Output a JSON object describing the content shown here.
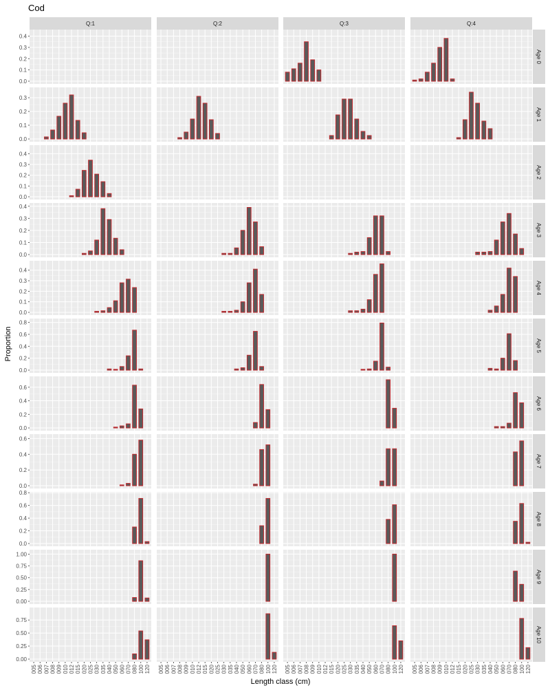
{
  "chart_data": {
    "type": "bar",
    "title": "Cod",
    "xlabel": "Length class (cm)",
    "ylabel": "Proportion",
    "categories": [
      "005",
      "006",
      "007",
      "008",
      "009",
      "010",
      "012",
      "015",
      "020",
      "025",
      "030",
      "035",
      "040",
      "050",
      "060",
      "070",
      "080",
      "100",
      "120"
    ],
    "quarters": [
      "Q:1",
      "Q:2",
      "Q:3",
      "Q:4"
    ],
    "ages": [
      "Age 0",
      "Age 1",
      "Age 2",
      "Age 3",
      "Age 4",
      "Age 5",
      "Age 6",
      "Age 7",
      "Age 8",
      "Age 9",
      "Age 10"
    ],
    "y_ticks": [
      [
        "0.0",
        "0.1",
        "0.2",
        "0.3",
        "0.4"
      ],
      [
        "0.0",
        "0.1",
        "0.2",
        "0.3"
      ],
      [
        "0.0",
        "0.1",
        "0.2",
        "0.3",
        "0.4"
      ],
      [
        "0.0",
        "0.1",
        "0.2",
        "0.3",
        "0.4"
      ],
      [
        "0.0",
        "0.1",
        "0.2",
        "0.3",
        "0.4"
      ],
      [
        "0.0",
        "0.2",
        "0.4",
        "0.6",
        "0.8"
      ],
      [
        "0.0",
        "0.2",
        "0.4",
        "0.6"
      ],
      [
        "0.0",
        "0.2",
        "0.4",
        "0.6"
      ],
      [
        "0.0",
        "0.2",
        "0.4",
        "0.6",
        "0.8"
      ],
      [
        "0.00",
        "0.25",
        "0.50",
        "0.75",
        "1.00"
      ],
      [
        "0.00",
        "0.25",
        "0.50",
        "0.75"
      ]
    ],
    "ylims": [
      [
        0,
        0.44
      ],
      [
        0,
        0.36
      ],
      [
        0,
        0.46
      ],
      [
        0,
        0.41
      ],
      [
        0,
        0.47
      ],
      [
        0,
        0.83
      ],
      [
        0,
        0.73
      ],
      [
        0,
        0.63
      ],
      [
        0,
        0.78
      ],
      [
        0,
        1.05
      ],
      [
        0,
        0.95
      ]
    ],
    "bar_color": "#5a5a5a",
    "bar_outline": "#c0282d",
    "panel_bg": "#ebebeb",
    "strip_bg": "#d9d9d9",
    "data": [
      [
        [
          0,
          0,
          0,
          0,
          0,
          0,
          0,
          0,
          0,
          0,
          0,
          0,
          0,
          0,
          0,
          0,
          0,
          0,
          0
        ],
        [
          0,
          0,
          0,
          0,
          0,
          0,
          0,
          0,
          0,
          0,
          0,
          0,
          0,
          0,
          0,
          0,
          0,
          0,
          0
        ],
        [
          0.08,
          0.11,
          0.16,
          0.35,
          0.19,
          0.1,
          0,
          0,
          0,
          0,
          0,
          0,
          0,
          0,
          0,
          0,
          0,
          0,
          0
        ],
        [
          0.01,
          0.02,
          0.08,
          0.16,
          0.3,
          0.38,
          0.02,
          0,
          0,
          0,
          0,
          0,
          0,
          0,
          0,
          0,
          0,
          0,
          0
        ]
      ],
      [
        [
          0,
          0,
          0.015,
          0.065,
          0.165,
          0.26,
          0.32,
          0.135,
          0.045,
          0,
          0,
          0,
          0,
          0,
          0,
          0,
          0,
          0,
          0
        ],
        [
          0,
          0,
          0,
          0.01,
          0.05,
          0.145,
          0.31,
          0.26,
          0.14,
          0.04,
          0,
          0,
          0,
          0,
          0,
          0,
          0,
          0,
          0
        ],
        [
          0,
          0,
          0,
          0,
          0,
          0,
          0,
          0.025,
          0.175,
          0.29,
          0.29,
          0.145,
          0.055,
          0.025,
          0,
          0,
          0,
          0,
          0
        ],
        [
          0,
          0,
          0,
          0,
          0,
          0,
          0,
          0.01,
          0.14,
          0.34,
          0.26,
          0.13,
          0.075,
          0,
          0,
          0,
          0,
          0,
          0
        ]
      ],
      [
        [
          0,
          0,
          0,
          0,
          0,
          0,
          0.01,
          0.07,
          0.245,
          0.34,
          0.21,
          0.14,
          0.03,
          0,
          0,
          0,
          0,
          0,
          0
        ],
        [
          0,
          0,
          0,
          0,
          0,
          0,
          0,
          0,
          0,
          0,
          0,
          0,
          0,
          0,
          0,
          0,
          0,
          0,
          0
        ],
        [
          0,
          0,
          0,
          0,
          0,
          0,
          0,
          0,
          0,
          0,
          0,
          0,
          0,
          0,
          0,
          0,
          0,
          0,
          0
        ],
        [
          0,
          0,
          0,
          0,
          0,
          0,
          0,
          0,
          0,
          0,
          0,
          0,
          0,
          0,
          0,
          0,
          0,
          0,
          0
        ]
      ],
      [
        [
          0,
          0,
          0,
          0,
          0,
          0,
          0,
          0,
          0.01,
          0.03,
          0.12,
          0.38,
          0.29,
          0.135,
          0.04,
          0,
          0,
          0,
          0
        ],
        [
          0,
          0,
          0,
          0,
          0,
          0,
          0,
          0,
          0,
          0,
          0.01,
          0.01,
          0.055,
          0.2,
          0.39,
          0.27,
          0.065,
          0,
          0
        ],
        [
          0,
          0,
          0,
          0,
          0,
          0,
          0,
          0,
          0,
          0,
          0.01,
          0.02,
          0.025,
          0.14,
          0.32,
          0.32,
          0.025,
          0,
          0
        ],
        [
          0,
          0,
          0,
          0,
          0,
          0,
          0,
          0,
          0,
          0,
          0.02,
          0.02,
          0.025,
          0.12,
          0.27,
          0.34,
          0.17,
          0.05,
          0
        ]
      ],
      [
        [
          0,
          0,
          0,
          0,
          0,
          0,
          0,
          0,
          0,
          0,
          0.01,
          0.015,
          0.045,
          0.11,
          0.28,
          0.315,
          0.235,
          0,
          0
        ],
        [
          0,
          0,
          0,
          0,
          0,
          0,
          0,
          0,
          0,
          0,
          0.01,
          0.01,
          0.02,
          0.1,
          0.28,
          0.41,
          0.17,
          0,
          0
        ],
        [
          0,
          0,
          0,
          0,
          0,
          0,
          0,
          0,
          0,
          0,
          0.015,
          0.015,
          0.03,
          0.12,
          0.36,
          0.46,
          0,
          0,
          0
        ],
        [
          0,
          0,
          0,
          0,
          0,
          0,
          0,
          0,
          0,
          0,
          0,
          0,
          0.02,
          0.06,
          0.17,
          0.42,
          0.34,
          0,
          0
        ]
      ],
      [
        [
          0,
          0,
          0,
          0,
          0,
          0,
          0,
          0,
          0,
          0,
          0,
          0,
          0.02,
          0.01,
          0.06,
          0.24,
          0.67,
          0.02,
          0
        ],
        [
          0,
          0,
          0,
          0,
          0,
          0,
          0,
          0,
          0,
          0,
          0,
          0,
          0.02,
          0.04,
          0.25,
          0.65,
          0.06,
          0,
          0
        ],
        [
          0,
          0,
          0,
          0,
          0,
          0,
          0,
          0,
          0,
          0,
          0,
          0,
          0.01,
          0.02,
          0.15,
          0.79,
          0.05,
          0,
          0
        ],
        [
          0,
          0,
          0,
          0,
          0,
          0,
          0,
          0,
          0,
          0,
          0,
          0,
          0.03,
          0.02,
          0.2,
          0.61,
          0.16,
          0,
          0
        ]
      ],
      [
        [
          0,
          0,
          0,
          0,
          0,
          0,
          0,
          0,
          0,
          0,
          0,
          0,
          0,
          0.01,
          0.03,
          0.06,
          0.63,
          0.28,
          0
        ],
        [
          0,
          0,
          0,
          0,
          0,
          0,
          0,
          0,
          0,
          0,
          0,
          0,
          0,
          0,
          0,
          0.08,
          0.64,
          0.27,
          0
        ],
        [
          0,
          0,
          0,
          0,
          0,
          0,
          0,
          0,
          0,
          0,
          0,
          0,
          0,
          0,
          0,
          0,
          0.71,
          0.29,
          0
        ],
        [
          0,
          0,
          0,
          0,
          0,
          0,
          0,
          0,
          0,
          0,
          0,
          0,
          0,
          0.02,
          0.02,
          0.07,
          0.52,
          0.37,
          0
        ]
      ],
      [
        [
          0,
          0,
          0,
          0,
          0,
          0,
          0,
          0,
          0,
          0,
          0,
          0,
          0,
          0,
          0.01,
          0.03,
          0.4,
          0.58,
          0
        ],
        [
          0,
          0,
          0,
          0,
          0,
          0,
          0,
          0,
          0,
          0,
          0,
          0,
          0,
          0,
          0,
          0.02,
          0.46,
          0.52,
          0
        ],
        [
          0,
          0,
          0,
          0,
          0,
          0,
          0,
          0,
          0,
          0,
          0,
          0,
          0,
          0,
          0,
          0.06,
          0.47,
          0.47,
          0
        ],
        [
          0,
          0,
          0,
          0,
          0,
          0,
          0,
          0,
          0,
          0,
          0,
          0,
          0,
          0,
          0,
          0,
          0.43,
          0.57,
          0
        ]
      ],
      [
        [
          0,
          0,
          0,
          0,
          0,
          0,
          0,
          0,
          0,
          0,
          0,
          0,
          0,
          0,
          0,
          0,
          0.26,
          0.71,
          0.03
        ],
        [
          0,
          0,
          0,
          0,
          0,
          0,
          0,
          0,
          0,
          0,
          0,
          0,
          0,
          0,
          0,
          0,
          0.28,
          0.71,
          0
        ],
        [
          0,
          0,
          0,
          0,
          0,
          0,
          0,
          0,
          0,
          0,
          0,
          0,
          0,
          0,
          0,
          0,
          0.38,
          0.61,
          0
        ],
        [
          0,
          0,
          0,
          0,
          0,
          0,
          0,
          0,
          0,
          0,
          0,
          0,
          0,
          0,
          0,
          0,
          0.35,
          0.63,
          0.02
        ]
      ],
      [
        [
          0,
          0,
          0,
          0,
          0,
          0,
          0,
          0,
          0,
          0,
          0,
          0,
          0,
          0,
          0,
          0,
          0.08,
          0.86,
          0.07
        ],
        [
          0,
          0,
          0,
          0,
          0,
          0,
          0,
          0,
          0,
          0,
          0,
          0,
          0,
          0,
          0,
          0,
          0,
          1.0,
          0
        ],
        [
          0,
          0,
          0,
          0,
          0,
          0,
          0,
          0,
          0,
          0,
          0,
          0,
          0,
          0,
          0,
          0,
          0,
          1.0,
          0
        ],
        [
          0,
          0,
          0,
          0,
          0,
          0,
          0,
          0,
          0,
          0,
          0,
          0,
          0,
          0,
          0,
          0,
          0.64,
          0.36,
          0
        ]
      ],
      [
        [
          0,
          0,
          0,
          0,
          0,
          0,
          0,
          0,
          0,
          0,
          0,
          0,
          0,
          0,
          0,
          0,
          0.1,
          0.54,
          0.37
        ],
        [
          0,
          0,
          0,
          0,
          0,
          0,
          0,
          0,
          0,
          0,
          0,
          0,
          0,
          0,
          0,
          0,
          0,
          0.87,
          0.13
        ],
        [
          0,
          0,
          0,
          0,
          0,
          0,
          0,
          0,
          0,
          0,
          0,
          0,
          0,
          0,
          0,
          0,
          0,
          0.64,
          0.35
        ],
        [
          0,
          0,
          0,
          0,
          0,
          0,
          0,
          0,
          0,
          0,
          0,
          0,
          0,
          0,
          0,
          0,
          0,
          0.78,
          0.22
        ]
      ]
    ]
  }
}
